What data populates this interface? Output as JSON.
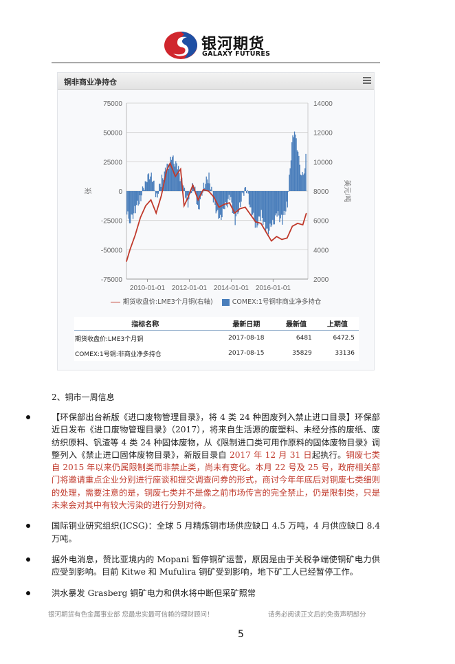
{
  "header": {
    "logo_text": "银河期货",
    "logo_subtext": "GALAXY FUTURES"
  },
  "chart_panel": {
    "title": "铜非商业净持仓",
    "menu_icon": "hamburger-menu-icon",
    "table": {
      "headers": [
        "指标名称",
        "最新日期",
        "最新值",
        "上期值"
      ],
      "rows": [
        [
          "期货收盘价:LME3个月铜",
          "2017-08-18",
          "6481",
          "6472.5"
        ],
        [
          "COMEX:1号铜:非商业净多持仓",
          "2017-08-15",
          "35829",
          "33136"
        ]
      ]
    }
  },
  "chart_data": {
    "type": "bar+line",
    "title": "铜非商业净持仓",
    "ylabel_left": "张",
    "ylabel_right": "美元/吨",
    "ylim_left": [
      -75000,
      75000
    ],
    "ylim_right": [
      2000,
      14000
    ],
    "yticks_left": [
      "75000",
      "50000",
      "25000",
      "0",
      "-25000",
      "-50000",
      "-75000"
    ],
    "yticks_right": [
      "14000",
      "12000",
      "10000",
      "8000",
      "6000",
      "4000",
      "2000"
    ],
    "xticks": [
      "2010-01-01",
      "2012-01-01",
      "2014-01-01",
      "2016-01-01"
    ],
    "grid": true,
    "legend_position": "bottom",
    "colors": {
      "line": "#c0392b",
      "bars": "#4a7ebb"
    },
    "series": [
      {
        "name": "期货收盘价:LME3个月铜(右轴)",
        "type": "line",
        "axis": "right",
        "x": [
          "2009-01",
          "2009-03",
          "2009-06",
          "2009-09",
          "2009-12",
          "2010-03",
          "2010-06",
          "2010-09",
          "2010-12",
          "2011-02",
          "2011-05",
          "2011-08",
          "2011-10",
          "2011-12",
          "2012-03",
          "2012-06",
          "2012-09",
          "2012-12",
          "2013-03",
          "2013-06",
          "2013-09",
          "2013-12",
          "2014-03",
          "2014-06",
          "2014-09",
          "2014-12",
          "2015-03",
          "2015-06",
          "2015-09",
          "2015-12",
          "2016-03",
          "2016-06",
          "2016-09",
          "2016-12",
          "2017-03",
          "2017-06",
          "2017-08"
        ],
        "values": [
          3200,
          4000,
          5000,
          6200,
          7000,
          7400,
          6500,
          7700,
          9400,
          9900,
          9000,
          9500,
          7000,
          7500,
          8400,
          7400,
          8100,
          8000,
          7600,
          6900,
          7100,
          7200,
          6500,
          6800,
          6900,
          6400,
          5900,
          5800,
          5200,
          4600,
          4900,
          4700,
          4800,
          5600,
          5800,
          5700,
          6481
        ]
      },
      {
        "name": "COMEX:1号铜非商业净多持仓",
        "type": "bar",
        "axis": "left",
        "x": [
          "2009-01",
          "2009-03",
          "2009-06",
          "2009-09",
          "2009-12",
          "2010-03",
          "2010-06",
          "2010-09",
          "2010-12",
          "2011-03",
          "2011-06",
          "2011-09",
          "2011-12",
          "2012-03",
          "2012-06",
          "2012-09",
          "2012-12",
          "2013-03",
          "2013-06",
          "2013-09",
          "2013-12",
          "2014-03",
          "2014-06",
          "2014-09",
          "2014-12",
          "2015-03",
          "2015-06",
          "2015-09",
          "2015-12",
          "2016-03",
          "2016-06",
          "2016-09",
          "2016-12",
          "2017-02",
          "2017-04",
          "2017-06",
          "2017-08"
        ],
        "values": [
          -20000,
          -25000,
          -15000,
          -5000,
          10000,
          15000,
          -5000,
          10000,
          20000,
          28000,
          20000,
          5000,
          -10000,
          8000,
          -15000,
          5000,
          12000,
          -10000,
          -25000,
          -15000,
          -5000,
          -25000,
          -10000,
          5000,
          -15000,
          -30000,
          -20000,
          -35000,
          -30000,
          -20000,
          -25000,
          -10000,
          50000,
          45000,
          20000,
          10000,
          35829
        ]
      }
    ]
  },
  "body": {
    "section_title": "2、铜市一周信息",
    "p1_a": "【环保部出台新版《进口废物管理目录》，将 4 类 24 种固废列入禁止进口目录】环保部近日发布《进口废物管理目录》（2017），将来自生活源的废塑料、未经分拣的废纸、废纺织原料、钒渣等 4 类 24 种固体废物，从《限制进口类可用作原料的固体废物目录》调整列入《禁止进口固体废物目录》，新版目录自 ",
    "p1_b": "2017 年 12 月 31 日",
    "p1_c": "起执行。",
    "p1_d": "铜废七类自 2015 年以来仍属限制类而非禁止类，尚未有变化。本月 22 号及 25 号，政府相关部门将邀请重点企业分别进行座谈和提交调查问券的形式，商讨今年年底后对铜废七类细则的处理，需要注意的是，铜废七类并不是像之前市场传言的完全禁止，仍是限制类，只是未来会对其中有较大污染的进行分别对待。",
    "p2": "国际铜业研究组织(ICSG)：全球 5 月精炼铜市场供应缺口 4.5 万吨，4 月供应缺口 8.4 万吨。",
    "p3": "据外电消息，赞比亚境内的 Mopani 暂停铜矿运营，原因是由于关税争端使铜矿电力供应受到影响。目前 Kitwe 和 Mufulira 铜矿受到影响，地下矿工人已经暂停工作。",
    "p4": "洪水暴发 Grasberg 铜矿电力和供水将中断但采矿照常"
  },
  "footer": {
    "left": "银河期货有色金属事业部 您最忠实最可信赖的理财顾问！",
    "right": "请务必阅读正文后的免责声明部分",
    "page_number": "5"
  }
}
